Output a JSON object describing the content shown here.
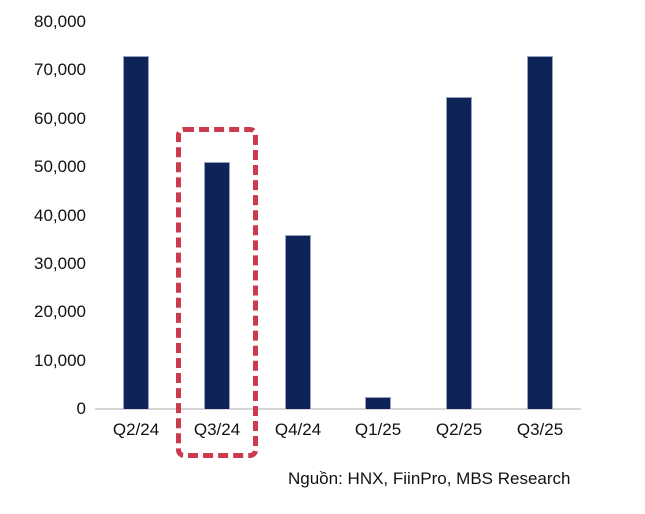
{
  "chart_data": {
    "type": "bar",
    "title": "",
    "categories": [
      "Q2/24",
      "Q3/24",
      "Q4/24",
      "Q1/25",
      "Q2/25",
      "Q3/25"
    ],
    "values": [
      73000,
      51000,
      36000,
      2500,
      64500,
      73000
    ],
    "xlabel": "",
    "ylabel": "",
    "ylim": [
      0,
      80000
    ],
    "ytick_step": 10000,
    "ytick_labels": [
      "0",
      "10,000",
      "20,000",
      "30,000",
      "40,000",
      "50,000",
      "60,000",
      "70,000",
      "80,000"
    ],
    "grid": false,
    "legend_position": "none",
    "bar_color": "#0e2357",
    "axis_line_color": "#d6d6d6",
    "highlight": {
      "category": "Q3/24",
      "shape": "dashed-rectangle",
      "border_color": "#cb3a4d"
    },
    "source_note": "Nguồn: HNX, FiinPro, MBS Research"
  }
}
